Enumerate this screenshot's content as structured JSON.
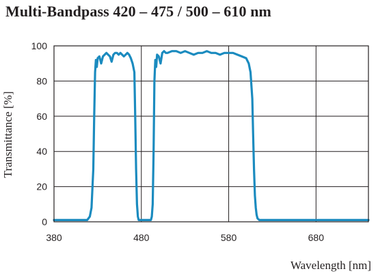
{
  "chart_data": {
    "type": "line",
    "title": "Multi-Bandpass 420 – 475 / 500 – 610 nm",
    "xlabel": "Wavelength [nm]",
    "ylabel": "Transmittance [%]",
    "xlim": [
      380,
      740
    ],
    "ylim": [
      0,
      100
    ],
    "xticks": [
      380,
      480,
      580,
      680
    ],
    "yticks": [
      0,
      20,
      40,
      60,
      80,
      100
    ],
    "xtick_labels": [
      "380",
      "480",
      "580",
      "680"
    ],
    "ytick_labels": [
      "0",
      "20",
      "40",
      "60",
      "80",
      "100"
    ],
    "grid": true,
    "line_color": "#1b8bbf",
    "series": [
      {
        "x": [
          380,
          418,
          421,
          423,
          425,
          426,
          427,
          428,
          429,
          430,
          432,
          434,
          436,
          438,
          440,
          442,
          444,
          446,
          448,
          450,
          452,
          454,
          456,
          458,
          460,
          462,
          464,
          466,
          468,
          470,
          472,
          473,
          474,
          475,
          476,
          477,
          478,
          480,
          485,
          489,
          491,
          492,
          493,
          494,
          495,
          496,
          497,
          498,
          500,
          502,
          504,
          506,
          508,
          510,
          515,
          520,
          525,
          530,
          535,
          540,
          545,
          550,
          555,
          560,
          565,
          570,
          575,
          580,
          585,
          590,
          595,
          600,
          603,
          605,
          607,
          608,
          609,
          610,
          611,
          612,
          613,
          615,
          620,
          640,
          680,
          740
        ],
        "y": [
          1,
          1,
          3,
          8,
          30,
          60,
          85,
          92,
          88,
          93,
          94,
          90,
          94,
          95,
          96,
          95,
          94,
          91,
          95,
          96,
          96,
          95,
          96,
          95,
          94,
          95,
          96,
          95,
          93,
          90,
          85,
          60,
          30,
          10,
          3,
          1,
          1,
          1,
          1,
          1,
          1,
          3,
          10,
          40,
          80,
          92,
          88,
          95,
          94,
          90,
          96,
          97,
          96,
          96,
          97,
          97,
          96,
          97,
          96,
          95,
          96,
          96,
          97,
          96,
          96,
          95,
          96,
          96,
          96,
          95,
          94,
          93,
          90,
          85,
          70,
          50,
          30,
          15,
          8,
          4,
          2,
          1,
          1,
          1,
          1,
          1
        ]
      }
    ]
  }
}
